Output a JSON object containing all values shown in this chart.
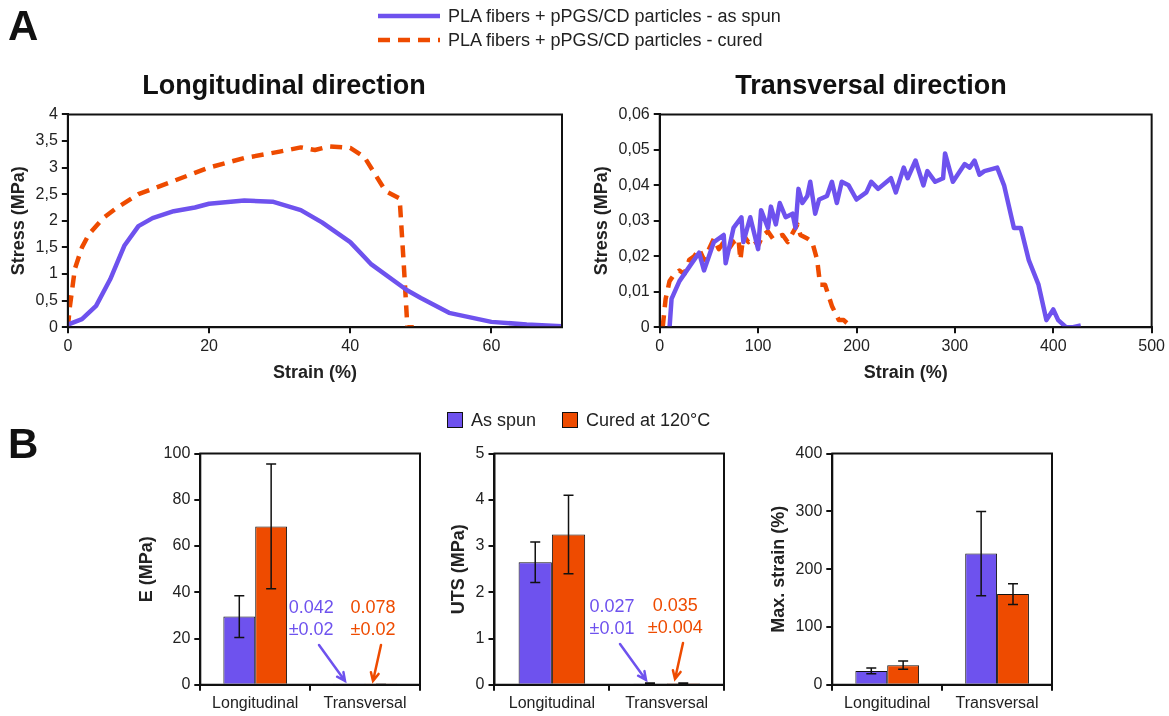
{
  "chart_data": [
    {
      "type": "line",
      "title": "Longitudinal direction",
      "xlabel": "Strain (%)",
      "ylabel": "Stress (MPa)",
      "xlim": [
        0,
        70
      ],
      "xticks": [
        0,
        20,
        40,
        60
      ],
      "ylim": [
        0,
        4
      ],
      "yticks": [
        0,
        {
          "value": 0.5,
          "label": "0,5"
        },
        1,
        {
          "value": 1.5,
          "label": "1,5"
        },
        2,
        {
          "value": 2.5,
          "label": "2,5"
        },
        3,
        {
          "value": 3.5,
          "label": "3,5"
        },
        4
      ],
      "legend": "top",
      "annotations": [
        "A"
      ],
      "series": [
        {
          "name": "PLA fibers + pPGS/CD particles - as spun",
          "color": "#6e52ee",
          "x": [
            0,
            2,
            4,
            6,
            8,
            10,
            12,
            15,
            18,
            20,
            25,
            29,
            33,
            36,
            40,
            43,
            48,
            50,
            54,
            60,
            65,
            70
          ],
          "values": [
            0.05,
            0.15,
            0.4,
            0.9,
            1.53,
            1.9,
            2.05,
            2.18,
            2.25,
            2.32,
            2.38,
            2.36,
            2.2,
            1.97,
            1.6,
            1.18,
            0.7,
            0.55,
            0.27,
            0.1,
            0.05,
            0.02
          ]
        },
        {
          "name": "PLA fibers + pPGS/CD particles - cured",
          "color": "#ee4b00",
          "line_style": "dashed",
          "x": [
            0,
            0.3,
            1,
            2,
            3,
            5,
            7,
            10,
            15,
            20,
            25,
            30,
            33,
            35,
            37,
            40,
            42,
            45,
            47,
            47.6,
            48.1,
            49
          ],
          "values": [
            0,
            0.4,
            1.1,
            1.5,
            1.75,
            2.05,
            2.25,
            2.5,
            2.75,
            3.0,
            3.18,
            3.3,
            3.38,
            3.33,
            3.4,
            3.37,
            3.2,
            2.56,
            2.42,
            1.15,
            0,
            0
          ]
        }
      ]
    },
    {
      "type": "line",
      "title": "Transversal direction",
      "xlabel": "Strain (%)",
      "ylabel": "Stress (MPa)",
      "xlim": [
        0,
        500
      ],
      "xticks": [
        0,
        100,
        200,
        300,
        400,
        500
      ],
      "ylim": [
        0,
        0.06
      ],
      "yticks": [
        0,
        {
          "value": 0.01,
          "label": "0,01"
        },
        {
          "value": 0.02,
          "label": "0,02"
        },
        {
          "value": 0.03,
          "label": "0,03"
        },
        {
          "value": 0.04,
          "label": "0,04"
        },
        {
          "value": 0.05,
          "label": "0,05"
        },
        {
          "value": 0.06,
          "label": "0,06"
        }
      ],
      "series": [
        {
          "color": "#6e52ee",
          "x": [
            10,
            12,
            20,
            30,
            40,
            45,
            55,
            65,
            67,
            75,
            83,
            85,
            92,
            100,
            103,
            110,
            113,
            118,
            122,
            128,
            135,
            138,
            141,
            145,
            150,
            153,
            158,
            162,
            170,
            175,
            180,
            185,
            192,
            200,
            210,
            215,
            222,
            235,
            240,
            248,
            252,
            260,
            268,
            272,
            280,
            288,
            290,
            298,
            310,
            315,
            320,
            325,
            330,
            343,
            350,
            360,
            367,
            375,
            385,
            393,
            400,
            405,
            413,
            420,
            428
          ],
          "values": [
            0,
            0.008,
            0.013,
            0.017,
            0.021,
            0.016,
            0.024,
            0.026,
            0.018,
            0.028,
            0.031,
            0.024,
            0.031,
            0.022,
            0.033,
            0.028,
            0.034,
            0.029,
            0.035,
            0.031,
            0.032,
            0.028,
            0.039,
            0.035,
            0.037,
            0.041,
            0.032,
            0.036,
            0.037,
            0.041,
            0.035,
            0.041,
            0.04,
            0.036,
            0.038,
            0.041,
            0.039,
            0.042,
            0.038,
            0.045,
            0.042,
            0.047,
            0.04,
            0.044,
            0.041,
            0.042,
            0.049,
            0.041,
            0.046,
            0.045,
            0.047,
            0.043,
            0.044,
            0.045,
            0.04,
            0.028,
            0.028,
            0.019,
            0.012,
            0.002,
            0.005,
            0.002,
            0,
            0,
            0.0005
          ]
        },
        {
          "color": "#ee4b00",
          "line_style": "dashed",
          "x": [
            3,
            6,
            10,
            15,
            20,
            25,
            30,
            35,
            40,
            45,
            50,
            55,
            60,
            65,
            70,
            75,
            80,
            82,
            85,
            90,
            95,
            100,
            105,
            110,
            115,
            125,
            130,
            140,
            143,
            150,
            155,
            160,
            163,
            168,
            175,
            182,
            187,
            195
          ],
          "values": [
            0,
            0.008,
            0.013,
            0.015,
            0.016,
            0.015,
            0.019,
            0.02,
            0.022,
            0.019,
            0.022,
            0.025,
            0.022,
            0.024,
            0.022,
            0.024,
            0.025,
            0.019,
            0.026,
            0.024,
            0.025,
            0.023,
            0.026,
            0.027,
            0.025,
            0.026,
            0.024,
            0.029,
            0.026,
            0.025,
            0.024,
            0.019,
            0.012,
            0.012,
            0.006,
            0.002,
            0.002,
            0
          ]
        }
      ]
    },
    {
      "type": "bar",
      "ylabel": "E (MPa)",
      "categories": [
        "Longitudinal",
        "Transversal"
      ],
      "ylim": [
        0,
        100
      ],
      "yticks": [
        0,
        20,
        40,
        60,
        80,
        100
      ],
      "legend": "top",
      "annotations": [
        "B"
      ],
      "series": [
        {
          "name": "As spun",
          "color": "#6e52ee",
          "values": [
            29.5,
            0.042
          ],
          "errors": [
            9,
            0.02
          ],
          "value_labels": [
            null,
            "0.042\n±0.02"
          ]
        },
        {
          "name": "Cured at 120°C",
          "color": "#ee4b00",
          "values": [
            68.5,
            0.078
          ],
          "errors": [
            27,
            0.02
          ],
          "value_labels": [
            null,
            "0.078\n±0.02"
          ]
        }
      ]
    },
    {
      "type": "bar",
      "ylabel": "UTS (MPa)",
      "categories": [
        "Longitudinal",
        "Transversal"
      ],
      "ylim": [
        0,
        5
      ],
      "yticks": [
        0,
        1,
        2,
        3,
        4,
        5
      ],
      "series": [
        {
          "color": "#6e52ee",
          "values": [
            2.65,
            0.027
          ],
          "errors": [
            0.44,
            0.01
          ],
          "value_labels": [
            null,
            "0.027\n±0.01"
          ]
        },
        {
          "color": "#ee4b00",
          "values": [
            3.25,
            0.035
          ],
          "errors": [
            0.85,
            0.004
          ],
          "value_labels": [
            null,
            "0.035\n±0.004"
          ]
        }
      ]
    },
    {
      "type": "bar",
      "ylabel": "Max. strain (%)",
      "categories": [
        "Longitudinal",
        "Transversal"
      ],
      "ylim": [
        0,
        400
      ],
      "yticks": [
        0,
        100,
        200,
        300,
        400
      ],
      "series": [
        {
          "color": "#6e52ee",
          "values": [
            24,
            227
          ],
          "errors": [
            5,
            73
          ]
        },
        {
          "color": "#ee4b00",
          "values": [
            34,
            157
          ],
          "errors": [
            7,
            18
          ]
        }
      ]
    }
  ]
}
